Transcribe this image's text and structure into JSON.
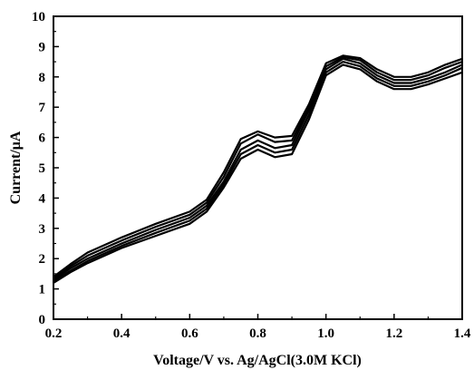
{
  "chart_data": {
    "type": "line",
    "title": "",
    "xlabel": "Voltage/V vs. Ag/AgCl(3.0M KCl)",
    "ylabel": "Current/μA",
    "xlim": [
      0.2,
      1.4
    ],
    "ylim": [
      0,
      10
    ],
    "x_ticks": [
      "0.2",
      "0.4",
      "0.6",
      "0.8",
      "1.0",
      "1.2",
      "1.4"
    ],
    "y_ticks": [
      "0",
      "1",
      "2",
      "3",
      "4",
      "5",
      "6",
      "7",
      "8",
      "9",
      "10"
    ],
    "grid": false,
    "legend": "none",
    "line_color": "#000000",
    "series": [
      {
        "x": [
          0.2,
          0.25,
          0.3,
          0.4,
          0.5,
          0.6,
          0.65,
          0.7,
          0.75,
          0.8,
          0.85,
          0.9,
          0.95,
          1.0,
          1.05,
          1.1,
          1.15,
          1.2,
          1.25,
          1.3,
          1.35,
          1.4
        ],
        "values": [
          1.2,
          1.55,
          1.85,
          2.35,
          2.75,
          3.15,
          3.55,
          4.35,
          5.3,
          5.6,
          5.35,
          5.45,
          6.6,
          8.05,
          8.4,
          8.25,
          7.85,
          7.6,
          7.6,
          7.75,
          7.95,
          8.15
        ]
      },
      {
        "x": [
          0.2,
          0.25,
          0.3,
          0.4,
          0.5,
          0.6,
          0.65,
          0.7,
          0.75,
          0.8,
          0.85,
          0.9,
          0.95,
          1.0,
          1.05,
          1.1,
          1.15,
          1.2,
          1.25,
          1.3,
          1.35,
          1.4
        ],
        "values": [
          1.25,
          1.6,
          1.92,
          2.42,
          2.85,
          3.25,
          3.65,
          4.45,
          5.45,
          5.75,
          5.5,
          5.6,
          6.75,
          8.15,
          8.5,
          8.35,
          7.95,
          7.7,
          7.7,
          7.85,
          8.05,
          8.3
        ]
      },
      {
        "x": [
          0.2,
          0.25,
          0.3,
          0.4,
          0.5,
          0.6,
          0.65,
          0.7,
          0.75,
          0.8,
          0.85,
          0.9,
          0.95,
          1.0,
          1.05,
          1.1,
          1.15,
          1.2,
          1.25,
          1.3,
          1.35,
          1.4
        ],
        "values": [
          1.3,
          1.68,
          2.0,
          2.5,
          2.95,
          3.35,
          3.75,
          4.55,
          5.6,
          5.9,
          5.65,
          5.75,
          6.9,
          8.25,
          8.6,
          8.45,
          8.05,
          7.8,
          7.8,
          7.95,
          8.15,
          8.4
        ]
      },
      {
        "x": [
          0.2,
          0.25,
          0.3,
          0.4,
          0.5,
          0.6,
          0.65,
          0.7,
          0.75,
          0.8,
          0.85,
          0.9,
          0.95,
          1.0,
          1.05,
          1.1,
          1.15,
          1.2,
          1.25,
          1.3,
          1.35,
          1.4
        ],
        "values": [
          1.35,
          1.75,
          2.1,
          2.6,
          3.05,
          3.45,
          3.85,
          4.7,
          5.8,
          6.1,
          5.85,
          5.9,
          7.0,
          8.35,
          8.65,
          8.55,
          8.15,
          7.9,
          7.9,
          8.05,
          8.3,
          8.5
        ]
      },
      {
        "x": [
          0.2,
          0.25,
          0.3,
          0.4,
          0.5,
          0.6,
          0.65,
          0.7,
          0.75,
          0.8,
          0.85,
          0.9,
          0.95,
          1.0,
          1.05,
          1.1,
          1.15,
          1.2,
          1.25,
          1.3,
          1.35,
          1.4
        ],
        "values": [
          1.4,
          1.82,
          2.2,
          2.7,
          3.15,
          3.55,
          3.95,
          4.85,
          5.95,
          6.2,
          6.0,
          6.05,
          7.1,
          8.45,
          8.7,
          8.62,
          8.25,
          8.0,
          8.0,
          8.15,
          8.4,
          8.6
        ]
      }
    ]
  }
}
